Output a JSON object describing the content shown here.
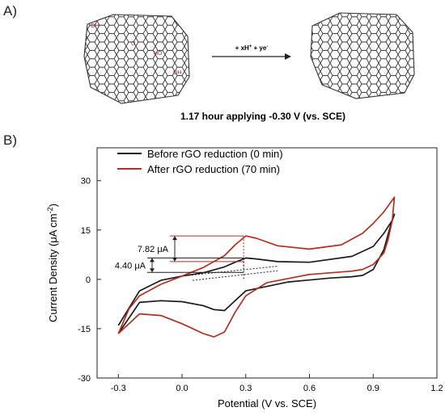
{
  "panel_a": {
    "label": "A)",
    "reaction_label": "+ xH",
    "reaction_sup1": "+",
    "reaction_mid": " + ye",
    "reaction_sup2": "-",
    "caption": "1.17 hour applying -0.30 V (vs. SCE)",
    "graphene_oxide_groups": [
      "OH",
      "O",
      "HO",
      "OH"
    ],
    "colors": {
      "structure": "#333333",
      "oxygen_groups": "#b03030"
    }
  },
  "panel_b": {
    "label": "B)"
  },
  "chart_data": {
    "type": "line",
    "title": "",
    "xlabel": "Potential (V vs. SCE)",
    "ylabel": "Current Density (μA cm",
    "ylabel_sup": "-2",
    "ylabel_end": ")",
    "xlim": [
      -0.4,
      1.2
    ],
    "ylim": [
      -30,
      40
    ],
    "xticks": [
      -0.3,
      0.0,
      0.3,
      0.6,
      0.9,
      1.2
    ],
    "xtick_labels": [
      "-0.3",
      "0.0",
      "0.3",
      "0.6",
      "0.9",
      "1.2"
    ],
    "yticks": [
      -30,
      -15,
      0,
      15,
      30
    ],
    "ytick_labels": [
      "-30",
      "-15",
      "0",
      "15",
      "30"
    ],
    "grid": false,
    "legend_position": "top-left",
    "series": [
      {
        "name": "Before rGO reduction (0 min)",
        "color": "#1a1a1a",
        "x": [
          -0.3,
          -0.2,
          -0.1,
          0.0,
          0.1,
          0.2,
          0.25,
          0.3,
          0.35,
          0.45,
          0.6,
          0.8,
          0.9,
          0.95,
          0.99,
          1.0,
          0.98,
          0.95,
          0.9,
          0.85,
          0.8,
          0.7,
          0.5,
          0.3,
          0.25,
          0.2,
          0.15,
          0.1,
          0.0,
          -0.1,
          -0.2,
          -0.3
        ],
        "y": [
          -14,
          -3.5,
          -0.3,
          1.0,
          2.0,
          3.8,
          5.2,
          6.5,
          6.2,
          5.4,
          5.2,
          7.0,
          10.0,
          14.0,
          18.0,
          19.8,
          16.0,
          9.0,
          3.0,
          1.2,
          0.8,
          0.4,
          -0.8,
          -3.5,
          -6.5,
          -9.5,
          -9.2,
          -8.0,
          -6.8,
          -6.5,
          -7.0,
          -16.5
        ]
      },
      {
        "name": "After rGO reduction (70 min)",
        "color": "#b03020",
        "x": [
          -0.3,
          -0.25,
          -0.2,
          -0.1,
          0.0,
          0.1,
          0.2,
          0.25,
          0.3,
          0.35,
          0.45,
          0.6,
          0.75,
          0.85,
          0.9,
          0.95,
          1.0,
          0.99,
          0.97,
          0.95,
          0.9,
          0.85,
          0.8,
          0.6,
          0.4,
          0.3,
          0.25,
          0.2,
          0.15,
          0.1,
          0.0,
          -0.1,
          -0.2,
          -0.3
        ],
        "y": [
          -16.5,
          -9.0,
          -5.0,
          -1.5,
          1.0,
          3.6,
          7.2,
          10.5,
          13.2,
          12.5,
          10.2,
          9.2,
          10.5,
          14.0,
          17.0,
          20.5,
          25.0,
          18.0,
          12.0,
          8.0,
          4.5,
          3.0,
          2.5,
          1.5,
          -1.0,
          -5.0,
          -10.0,
          -16.0,
          -17.5,
          -16.5,
          -13.5,
          -11.0,
          -10.5,
          -16.5
        ]
      }
    ],
    "annotations": [
      {
        "text": "7.82 μA",
        "peak": 0.3,
        "x_mark": 0.29,
        "y_low": 5.4,
        "y_high": 13.2
      },
      {
        "text": "4.40 μA",
        "peak": 0.3,
        "x_mark": 0.29,
        "y_low": 2.1,
        "y_high": 6.5
      }
    ],
    "baselines": [
      {
        "x": [
          0.0,
          0.45
        ],
        "y": [
          1.0,
          4.0
        ]
      },
      {
        "x": [
          0.05,
          0.45
        ],
        "y": [
          -0.3,
          2.6
        ]
      }
    ]
  }
}
